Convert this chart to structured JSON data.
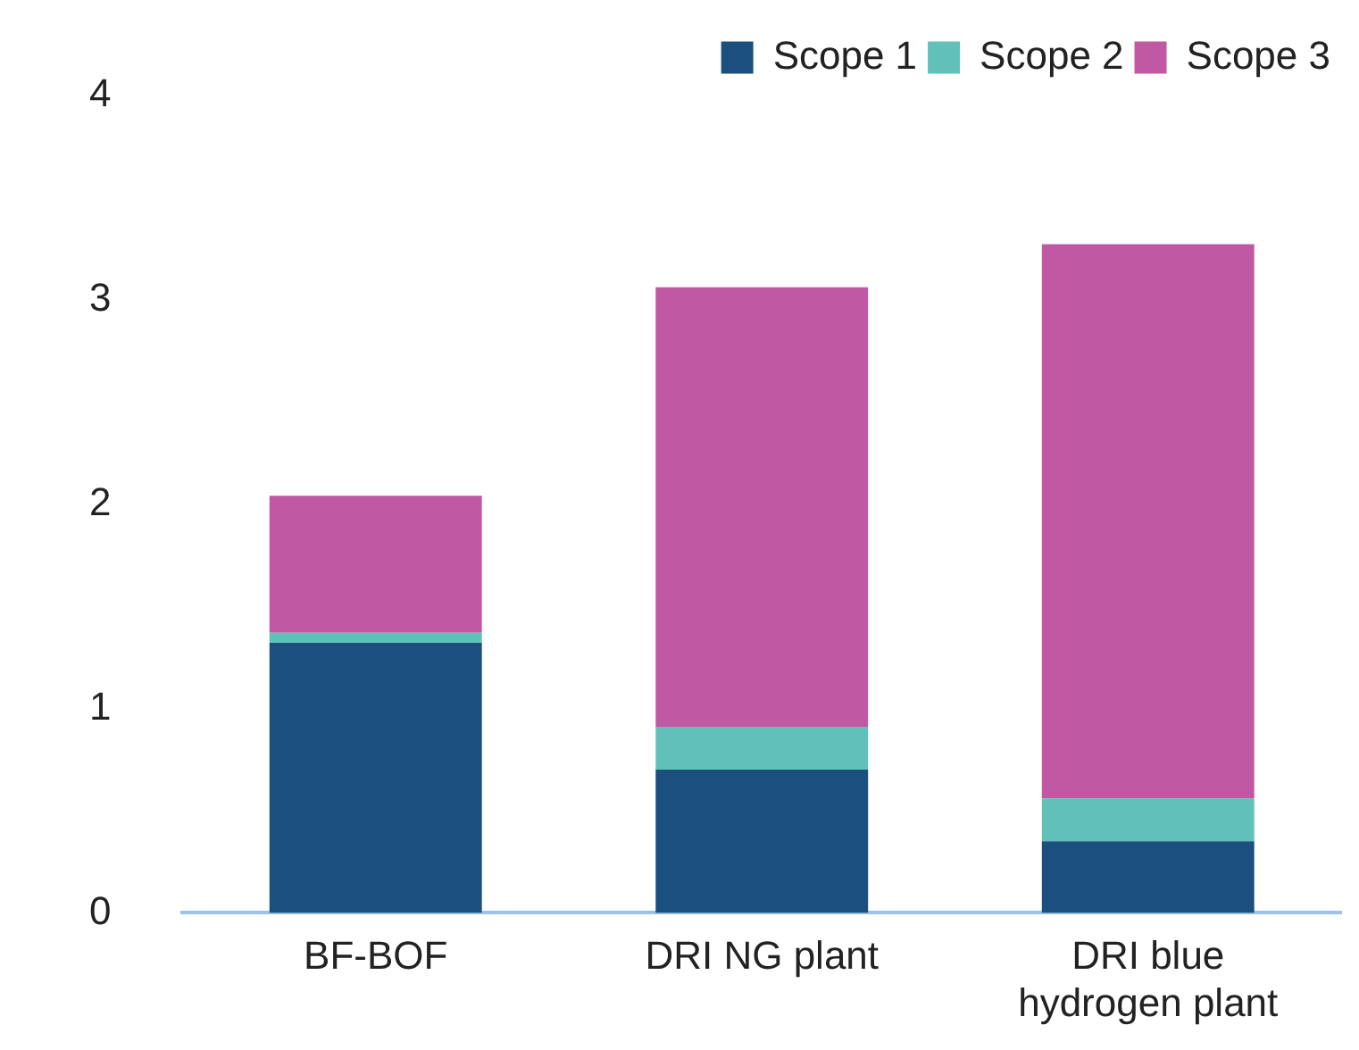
{
  "chart_data": {
    "type": "bar",
    "stacked": true,
    "categories": [
      "BF-BOF",
      "DRI NG plant",
      "DRI blue hydrogen plant"
    ],
    "series": [
      {
        "name": "Scope 1",
        "color": "#1b4f7d",
        "values": [
          1.32,
          0.7,
          0.35
        ]
      },
      {
        "name": "Scope 2",
        "color": "#5fc1b8",
        "values": [
          0.05,
          0.21,
          0.21
        ]
      },
      {
        "name": "Scope 3",
        "color": "#c058a3",
        "values": [
          0.67,
          2.15,
          2.71
        ]
      }
    ],
    "ylim": [
      0,
      4
    ],
    "yticks": [
      0,
      1,
      2,
      3,
      4
    ],
    "grid": false,
    "legend": "top"
  }
}
